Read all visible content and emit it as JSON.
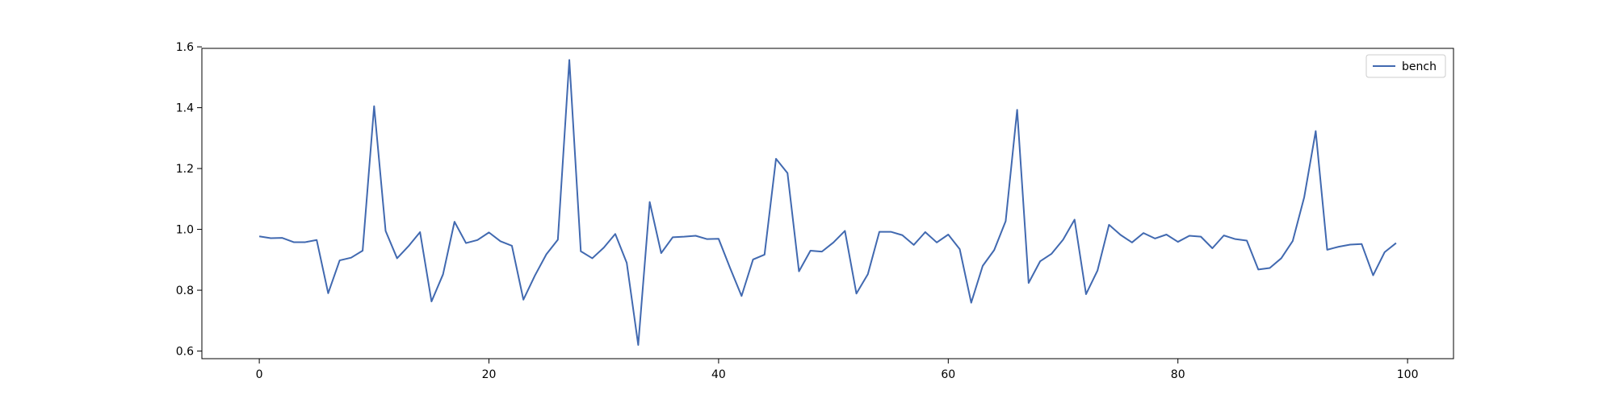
{
  "chart_data": {
    "type": "line",
    "title": "",
    "xlabel": "",
    "ylabel": "",
    "xlim": [
      -5,
      104
    ],
    "ylim": [
      0.575,
      1.595
    ],
    "xticks": [
      0,
      20,
      40,
      60,
      80,
      100
    ],
    "xtick_labels": [
      "0",
      "20",
      "40",
      "60",
      "80",
      "100"
    ],
    "yticks": [
      0.6,
      0.8,
      1.0,
      1.2,
      1.4,
      1.6
    ],
    "ytick_labels": [
      "0.6",
      "0.8",
      "1.0",
      "1.2",
      "1.4",
      "1.6"
    ],
    "grid": false,
    "legend": {
      "placement": "top-right",
      "entries": [
        "bench"
      ]
    },
    "series": [
      {
        "name": "bench",
        "color": "#4169b0",
        "x": [
          0,
          1,
          2,
          3,
          4,
          5,
          6,
          7,
          8,
          9,
          10,
          11,
          12,
          13,
          14,
          15,
          16,
          17,
          18,
          19,
          20,
          21,
          22,
          23,
          24,
          25,
          26,
          27,
          28,
          29,
          30,
          31,
          32,
          33,
          34,
          35,
          36,
          37,
          38,
          39,
          40,
          41,
          42,
          43,
          44,
          45,
          46,
          47,
          48,
          49,
          50,
          51,
          52,
          53,
          54,
          55,
          56,
          57,
          58,
          59,
          60,
          61,
          62,
          63,
          64,
          65,
          66,
          67,
          68,
          69,
          70,
          71,
          72,
          73,
          74,
          75,
          76,
          77,
          78,
          79,
          80,
          81,
          82,
          83,
          84,
          85,
          86,
          87,
          88,
          89,
          90,
          91,
          92,
          93,
          94,
          95,
          96,
          97,
          98,
          99
        ],
        "y": [
          0.977,
          0.971,
          0.972,
          0.958,
          0.958,
          0.965,
          0.79,
          0.898,
          0.907,
          0.93,
          1.405,
          0.995,
          0.905,
          0.945,
          0.991,
          0.763,
          0.852,
          1.025,
          0.955,
          0.965,
          0.99,
          0.961,
          0.946,
          0.769,
          0.848,
          0.918,
          0.966,
          1.557,
          0.928,
          0.905,
          0.94,
          0.985,
          0.89,
          0.62,
          1.09,
          0.922,
          0.974,
          0.976,
          0.979,
          0.968,
          0.969,
          0.873,
          0.781,
          0.901,
          0.917,
          1.232,
          1.185,
          0.862,
          0.93,
          0.927,
          0.957,
          0.995,
          0.789,
          0.853,
          0.992,
          0.992,
          0.981,
          0.949,
          0.991,
          0.957,
          0.983,
          0.935,
          0.759,
          0.88,
          0.932,
          1.027,
          1.393,
          0.824,
          0.895,
          0.92,
          0.966,
          1.032,
          0.787,
          0.865,
          1.015,
          0.982,
          0.957,
          0.988,
          0.97,
          0.983,
          0.959,
          0.979,
          0.976,
          0.938,
          0.98,
          0.968,
          0.963,
          0.868,
          0.873,
          0.905,
          0.962,
          1.106,
          1.323,
          0.933,
          0.943,
          0.95,
          0.952,
          0.849,
          0.925,
          0.955
        ]
      }
    ]
  }
}
